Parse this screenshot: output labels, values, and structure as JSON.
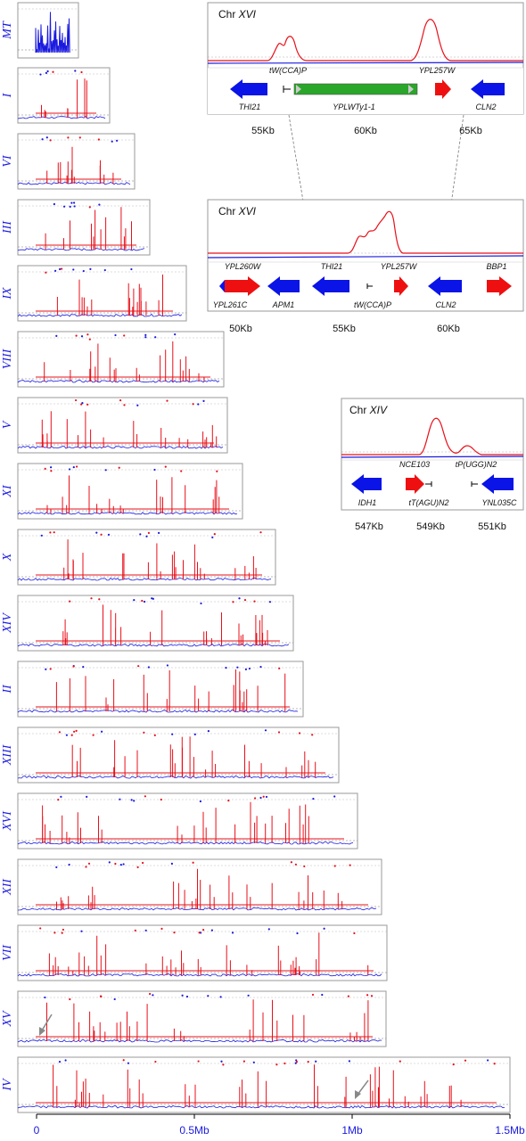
{
  "genome_axis": {
    "ticks": [
      "0",
      "0.5Mb",
      "1Mb",
      "1.5Mb"
    ]
  },
  "chromosomes": [
    {
      "name": "MT"
    },
    {
      "name": "I"
    },
    {
      "name": "VI"
    },
    {
      "name": "III"
    },
    {
      "name": "IX"
    },
    {
      "name": "VIII"
    },
    {
      "name": "V"
    },
    {
      "name": "XI"
    },
    {
      "name": "X"
    },
    {
      "name": "XIV"
    },
    {
      "name": "II"
    },
    {
      "name": "XIII"
    },
    {
      "name": "XVI"
    },
    {
      "name": "XII"
    },
    {
      "name": "VII"
    },
    {
      "name": "XV"
    },
    {
      "name": "IV"
    }
  ],
  "insets": {
    "a": {
      "title_prefix": "Chr ",
      "title_roman": "XVI",
      "peak_labels": [
        "tW(CCA)P",
        "YPL257W"
      ],
      "genes": [
        "THI21",
        "YPLWTy1-1",
        "CLN2"
      ],
      "kb_ticks": [
        "55Kb",
        "60Kb",
        "65Kb"
      ]
    },
    "b": {
      "title_prefix": "Chr ",
      "title_roman": "XVI",
      "genes_top": [
        "YPL260W",
        "THI21",
        "YPL257W",
        "BBP1"
      ],
      "genes_bottom": [
        "YPL261C",
        "APM1",
        "tW(CCA)P",
        "CLN2"
      ],
      "kb_ticks": [
        "50Kb",
        "55Kb",
        "60Kb"
      ]
    },
    "c": {
      "title_prefix": "Chr ",
      "title_roman": "XIV",
      "genes_top": [
        "NCE103",
        "tP(UGG)N2"
      ],
      "genes_bottom": [
        "IDH1",
        "tT(AGU)N2",
        "YNL035C"
      ],
      "kb_ticks": [
        "547Kb",
        "549Kb",
        "551Kb"
      ]
    }
  },
  "colors": {
    "peak": "#e8101a",
    "baseline": "#1a1adf",
    "frame": "#9a9a9a",
    "label": "#1a1adf",
    "arrow_blue": "#0a14e6",
    "arrow_red": "#ee1010",
    "ty_element": "#2aa62a"
  }
}
